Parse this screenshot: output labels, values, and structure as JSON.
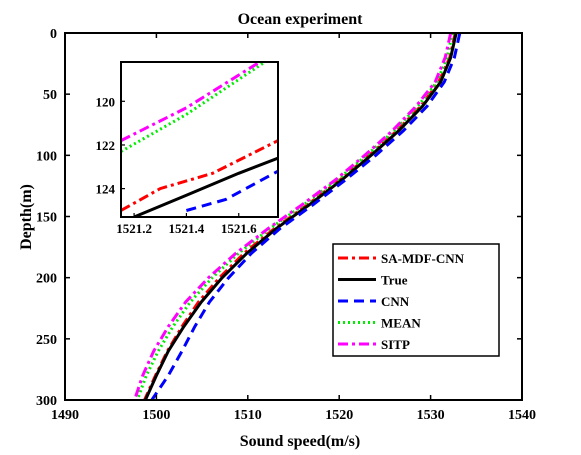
{
  "chart_data": {
    "type": "line",
    "title": "Ocean experiment",
    "xlabel": "Sound speed(m/s)",
    "ylabel": "Depth(m)",
    "xlim": [
      1490,
      1540
    ],
    "ylim": [
      0,
      300
    ],
    "y_reversed": true,
    "xticks": [
      "1490",
      "1500",
      "1510",
      "1520",
      "1530",
      "1540"
    ],
    "yticks": [
      "0",
      "50",
      "100",
      "150",
      "200",
      "250",
      "300"
    ],
    "legend_position": "bottom-right",
    "series": [
      {
        "name": "SA-MDF-CNN",
        "color": "#ff0000",
        "dash": "dashdot",
        "depth": [
          0,
          20,
          40,
          60,
          80,
          100,
          120,
          140,
          160,
          180,
          200,
          220,
          240,
          260,
          280,
          300
        ],
        "speed": [
          1532.7,
          1532.1,
          1530.9,
          1528.9,
          1526.3,
          1523.3,
          1520.1,
          1516.6,
          1512.9,
          1509.6,
          1506.9,
          1504.6,
          1502.8,
          1501.2,
          1499.9,
          1498.7
        ]
      },
      {
        "name": "True",
        "color": "#000000",
        "dash": "solid",
        "depth": [
          0,
          20,
          40,
          60,
          80,
          100,
          120,
          140,
          160,
          180,
          200,
          220,
          240,
          260,
          280,
          300
        ],
        "speed": [
          1532.8,
          1532.2,
          1531.1,
          1529.1,
          1526.5,
          1523.5,
          1520.3,
          1516.8,
          1513.1,
          1509.9,
          1507.2,
          1504.9,
          1503.0,
          1501.3,
          1500.0,
          1498.8
        ]
      },
      {
        "name": "CNN",
        "color": "#0000ff",
        "dash": "dashed",
        "depth": [
          0,
          20,
          40,
          60,
          80,
          100,
          120,
          140,
          160,
          180,
          200,
          220,
          240,
          260,
          280,
          300
        ],
        "speed": [
          1533.2,
          1532.6,
          1531.5,
          1529.6,
          1527.0,
          1524.0,
          1520.7,
          1517.2,
          1513.5,
          1510.4,
          1507.9,
          1505.8,
          1504.2,
          1502.8,
          1501.3,
          1499.5
        ]
      },
      {
        "name": "MEAN",
        "color": "#00ee00",
        "dash": "dotted",
        "depth": [
          0,
          20,
          40,
          60,
          80,
          100,
          120,
          140,
          160,
          180,
          200,
          220,
          240,
          260,
          280,
          300
        ],
        "speed": [
          1532.4,
          1531.8,
          1530.7,
          1528.6,
          1526.0,
          1523.0,
          1519.8,
          1516.2,
          1512.4,
          1509.0,
          1506.1,
          1503.7,
          1501.8,
          1500.2,
          1498.9,
          1497.9
        ]
      },
      {
        "name": "SITP",
        "color": "#ff00ff",
        "dash": "dashdot",
        "depth": [
          0,
          20,
          40,
          60,
          80,
          100,
          120,
          140,
          160,
          180,
          200,
          220,
          240,
          260,
          280,
          300
        ],
        "speed": [
          1532.2,
          1531.6,
          1530.5,
          1528.4,
          1525.8,
          1522.8,
          1519.6,
          1516.0,
          1512.2,
          1508.7,
          1505.7,
          1503.2,
          1501.3,
          1499.7,
          1498.5,
          1497.6
        ]
      }
    ],
    "inset": {
      "xlim": [
        1521.15,
        1521.75
      ],
      "ylim": [
        118.2,
        125.3
      ],
      "xticks": [
        "1521.2",
        "1521.4",
        "1521.6"
      ],
      "yticks": [
        "120",
        "122",
        "124"
      ],
      "series": [
        {
          "name": "SA-MDF-CNN",
          "speed": [
            1521.15,
            1521.3,
            1521.5,
            1521.75
          ],
          "depth": [
            125.0,
            124.0,
            123.3,
            121.8
          ]
        },
        {
          "name": "True",
          "speed": [
            1521.2,
            1521.4,
            1521.6,
            1521.75
          ],
          "depth": [
            125.3,
            124.3,
            123.3,
            122.6
          ]
        },
        {
          "name": "CNN",
          "speed": [
            1521.4,
            1521.55,
            1521.75
          ],
          "depth": [
            125.0,
            124.5,
            123.2
          ]
        },
        {
          "name": "MEAN",
          "speed": [
            1521.15,
            1521.4,
            1521.7
          ],
          "depth": [
            122.3,
            120.6,
            118.2
          ]
        },
        {
          "name": "SITP",
          "speed": [
            1521.15,
            1521.4,
            1521.68
          ],
          "depth": [
            121.8,
            120.3,
            118.2
          ]
        }
      ]
    }
  }
}
